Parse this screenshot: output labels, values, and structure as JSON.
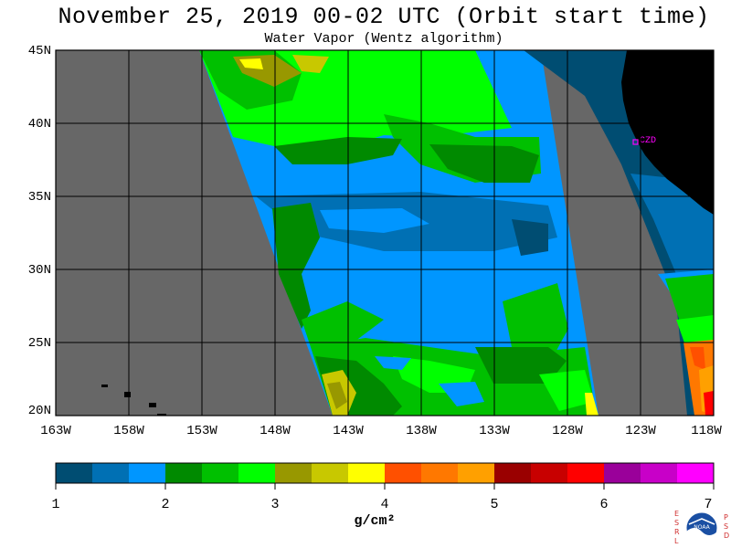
{
  "title": "November 25, 2019  00-02 UTC  (Orbit start time)",
  "subtitle": "Water Vapor (Wentz algorithm)",
  "map": {
    "lat_labels": [
      "45N",
      "40N",
      "35N",
      "30N",
      "25N",
      "20N"
    ],
    "lon_labels": [
      "163W",
      "158W",
      "153W",
      "148W",
      "143W",
      "138W",
      "133W",
      "128W",
      "123W",
      "118W"
    ],
    "station_label": "CZD",
    "colors": {
      "background": "#676767",
      "land": "#000000",
      "gridline": "#000000",
      "station": "#ff00ff"
    }
  },
  "colorbar": {
    "tick_labels": [
      "1",
      "2",
      "3",
      "4",
      "5",
      "6",
      "7"
    ],
    "units": "g/cm²",
    "colors": [
      "#004d72",
      "#0070b4",
      "#0096ff",
      "#008a00",
      "#00c000",
      "#00ff00",
      "#989800",
      "#c8c800",
      "#ffff00",
      "#ff5000",
      "#ff7800",
      "#ffa000",
      "#9a0000",
      "#c80000",
      "#ff0000",
      "#9a009a",
      "#c800c8",
      "#ff00ff"
    ]
  },
  "logo": {
    "name": "noaa-logo-icon",
    "left_letters": "ESRL",
    "right_letters": "PSD",
    "inner_text": "NOAA"
  }
}
